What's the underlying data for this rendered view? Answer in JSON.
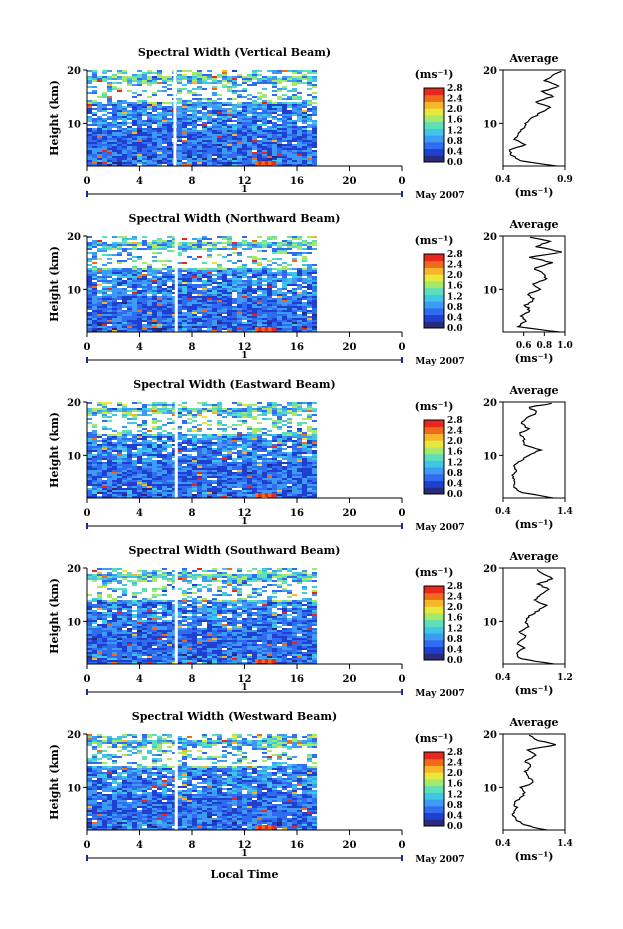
{
  "figure": {
    "xlabel": "Local Time",
    "date_label": "May 2007",
    "day_label": "1",
    "ylabel": "Height (km)",
    "unit_label": "(ms⁻¹)",
    "avg_title": "Average",
    "avg_xlabel": "(ms⁻¹)"
  },
  "chart_data": [
    {
      "type": "heatmap",
      "title": "Spectral Width (Vertical Beam)",
      "xlabel": "Local Time",
      "ylabel": "Height (km)",
      "xlim": [
        0,
        24
      ],
      "ylim": [
        2,
        20
      ],
      "xticks": [
        "0",
        "4",
        "8",
        "12",
        "16",
        "20",
        "0"
      ],
      "yticks": [
        "10",
        "20"
      ],
      "data_end_hour": 17.5,
      "gap_hour": 6.7,
      "colorbar": {
        "label": "(ms⁻¹)",
        "ticks": [
          "0.0",
          "0.4",
          "0.8",
          "1.2",
          "1.6",
          "2.0",
          "2.4",
          "2.8"
        ],
        "range": [
          0,
          2.8
        ]
      },
      "profile": {
        "title": "Average",
        "xlabel": "(ms⁻¹)",
        "xlim": [
          0.4,
          0.9
        ],
        "xticks": [
          "0.4",
          "0.9"
        ],
        "yticks": [
          "10",
          "20"
        ],
        "heights": [
          2,
          3,
          4,
          5,
          6,
          7,
          8,
          9,
          10,
          11,
          12,
          13,
          14,
          15,
          16,
          17,
          18,
          19,
          20
        ],
        "values": [
          0.82,
          0.55,
          0.47,
          0.44,
          0.58,
          0.5,
          0.52,
          0.56,
          0.58,
          0.64,
          0.7,
          0.78,
          0.66,
          0.8,
          0.72,
          0.85,
          0.74,
          0.8,
          0.88
        ]
      }
    },
    {
      "type": "heatmap",
      "title": "Spectral Width (Northward Beam)",
      "xlabel": "Local Time",
      "ylabel": "Height (km)",
      "xlim": [
        0,
        24
      ],
      "ylim": [
        2,
        20
      ],
      "xticks": [
        "0",
        "4",
        "8",
        "12",
        "16",
        "20",
        "0"
      ],
      "yticks": [
        "10",
        "20"
      ],
      "data_end_hour": 17.5,
      "gap_hour": 6.8,
      "colorbar": {
        "label": "(ms⁻¹)",
        "ticks": [
          "0.0",
          "0.4",
          "0.8",
          "1.2",
          "1.6",
          "2.0",
          "2.4",
          "2.8"
        ],
        "range": [
          0,
          2.8
        ]
      },
      "profile": {
        "title": "Average",
        "xlabel": "(ms⁻¹)",
        "xlim": [
          0.4,
          1.0
        ],
        "xticks": [
          "0.6",
          "0.8",
          "1.0"
        ],
        "yticks": [
          "10",
          "20"
        ],
        "heights": [
          2,
          3,
          4,
          5,
          6,
          7,
          8,
          9,
          10,
          11,
          12,
          13,
          14,
          15,
          16,
          17,
          18,
          19,
          20
        ],
        "values": [
          0.95,
          0.55,
          0.62,
          0.58,
          0.66,
          0.62,
          0.7,
          0.64,
          0.75,
          0.7,
          0.82,
          0.78,
          0.7,
          0.88,
          0.66,
          0.98,
          0.72,
          0.85,
          0.6
        ]
      }
    },
    {
      "type": "heatmap",
      "title": "Spectral Width (Eastward Beam)",
      "xlabel": "Local Time",
      "ylabel": "Height (km)",
      "xlim": [
        0,
        24
      ],
      "ylim": [
        2,
        20
      ],
      "xticks": [
        "0",
        "4",
        "8",
        "12",
        "16",
        "20",
        "0"
      ],
      "yticks": [
        "10",
        "20"
      ],
      "data_end_hour": 17.5,
      "gap_hour": 6.8,
      "colorbar": {
        "label": "(ms⁻¹)",
        "ticks": [
          "0.0",
          "0.4",
          "0.8",
          "1.2",
          "1.6",
          "2.0",
          "2.4",
          "2.8"
        ],
        "range": [
          0,
          2.8
        ]
      },
      "profile": {
        "title": "Average",
        "xlabel": "(ms⁻¹)",
        "xlim": [
          0.4,
          1.4
        ],
        "xticks": [
          "0.4",
          "1.4"
        ],
        "yticks": [
          "10",
          "20"
        ],
        "heights": [
          2,
          3,
          4,
          5,
          6,
          7,
          8,
          9,
          10,
          11,
          12,
          13,
          14,
          15,
          16,
          17,
          18,
          19,
          20
        ],
        "values": [
          1.2,
          0.72,
          0.58,
          0.6,
          0.55,
          0.62,
          0.58,
          0.68,
          0.8,
          1.0,
          0.72,
          0.75,
          0.66,
          0.8,
          0.7,
          0.78,
          0.95,
          0.82,
          1.3
        ]
      }
    },
    {
      "type": "heatmap",
      "title": "Spectral Width (Southward Beam)",
      "xlabel": "Local Time",
      "ylabel": "Height (km)",
      "xlim": [
        0,
        24
      ],
      "ylim": [
        2,
        20
      ],
      "xticks": [
        "0",
        "4",
        "8",
        "12",
        "16",
        "20",
        "0"
      ],
      "yticks": [
        "10",
        "20"
      ],
      "data_end_hour": 17.5,
      "gap_hour": 6.8,
      "colorbar": {
        "label": "(ms⁻¹)",
        "ticks": [
          "0.0",
          "0.4",
          "0.8",
          "1.2",
          "1.6",
          "2.0",
          "2.4",
          "2.8"
        ],
        "range": [
          0,
          2.8
        ]
      },
      "profile": {
        "title": "Average",
        "xlabel": "(ms⁻¹)",
        "xlim": [
          0.4,
          1.2
        ],
        "xticks": [
          "0.4",
          "1.2"
        ],
        "yticks": [
          "10",
          "20"
        ],
        "heights": [
          2,
          3,
          4,
          5,
          6,
          7,
          8,
          9,
          10,
          11,
          12,
          13,
          14,
          15,
          16,
          17,
          18,
          19,
          20
        ],
        "values": [
          1.05,
          0.62,
          0.58,
          0.66,
          0.58,
          0.7,
          0.62,
          0.72,
          0.68,
          0.75,
          0.85,
          0.95,
          0.8,
          0.88,
          1.0,
          0.85,
          1.05,
          0.9,
          0.8
        ]
      }
    },
    {
      "type": "heatmap",
      "title": "Spectral Width (Westward Beam)",
      "xlabel": "Local Time",
      "ylabel": "Height (km)",
      "xlim": [
        0,
        24
      ],
      "ylim": [
        2,
        20
      ],
      "xticks": [
        "0",
        "4",
        "8",
        "12",
        "16",
        "20",
        "0"
      ],
      "yticks": [
        "10",
        "20"
      ],
      "data_end_hour": 17.5,
      "gap_hour": 6.8,
      "colorbar": {
        "label": "(ms⁻¹)",
        "ticks": [
          "0.0",
          "0.4",
          "0.8",
          "1.2",
          "1.6",
          "2.0",
          "2.4",
          "2.8"
        ],
        "range": [
          0,
          2.8
        ]
      },
      "profile": {
        "title": "Average",
        "xlabel": "(ms⁻¹)",
        "xlim": [
          0.4,
          1.4
        ],
        "xticks": [
          "0.4",
          "1.4"
        ],
        "yticks": [
          "10",
          "20"
        ],
        "heights": [
          2,
          3,
          4,
          5,
          6,
          7,
          8,
          9,
          10,
          11,
          12,
          13,
          14,
          15,
          16,
          17,
          18,
          19,
          20
        ],
        "values": [
          1.1,
          0.72,
          0.6,
          0.55,
          0.62,
          0.58,
          0.68,
          0.75,
          0.7,
          0.9,
          0.8,
          0.76,
          0.85,
          0.75,
          0.95,
          0.8,
          1.25,
          0.9,
          0.8
        ]
      }
    }
  ]
}
